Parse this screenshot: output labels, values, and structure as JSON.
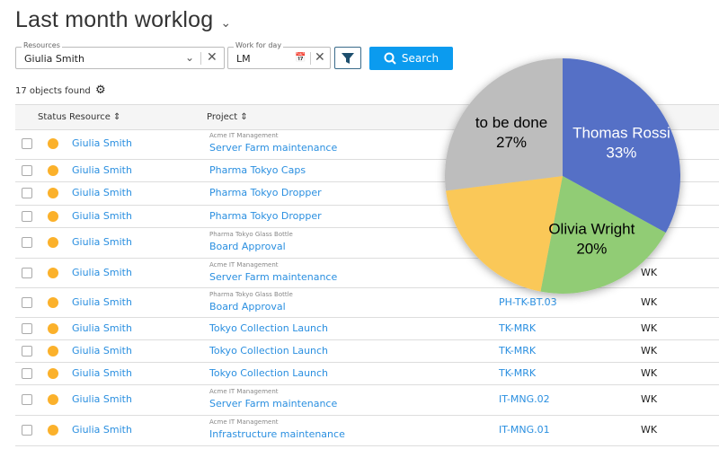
{
  "title": "Last month worklog",
  "filters": {
    "resources_label": "Resources",
    "resources_value": "Giulia Smith",
    "day_label": "Work for day",
    "day_value": "LM",
    "search_label": "Search"
  },
  "count_text": "17 objects found",
  "columns": {
    "status": "Status",
    "resource": "Resource",
    "project": "Project"
  },
  "rows": [
    {
      "resource": "Giulia Smith",
      "sub": "Acme IT Management",
      "project": "Server Farm maintenance",
      "code": "",
      "type": ""
    },
    {
      "resource": "Giulia Smith",
      "sub": "",
      "project": "Pharma Tokyo Caps",
      "code": "",
      "type": ""
    },
    {
      "resource": "Giulia Smith",
      "sub": "",
      "project": "Pharma Tokyo Dropper",
      "code": "",
      "type": ""
    },
    {
      "resource": "Giulia Smith",
      "sub": "",
      "project": "Pharma Tokyo Dropper",
      "code": "",
      "type": ""
    },
    {
      "resource": "Giulia Smith",
      "sub": "Pharma Tokyo Glass Bottle",
      "project": "Board Approval",
      "code": "",
      "type": ""
    },
    {
      "resource": "Giulia Smith",
      "sub": "Acme IT Management",
      "project": "Server Farm maintenance",
      "code": "",
      "type": "WK"
    },
    {
      "resource": "Giulia Smith",
      "sub": "Pharma Tokyo Glass Bottle",
      "project": "Board Approval",
      "code": "PH-TK-BT.03",
      "type": "WK"
    },
    {
      "resource": "Giulia Smith",
      "sub": "",
      "project": "Tokyo Collection Launch",
      "code": "TK-MRK",
      "type": "WK"
    },
    {
      "resource": "Giulia Smith",
      "sub": "",
      "project": "Tokyo Collection Launch",
      "code": "TK-MRK",
      "type": "WK"
    },
    {
      "resource": "Giulia Smith",
      "sub": "",
      "project": "Tokyo Collection Launch",
      "code": "TK-MRK",
      "type": "WK"
    },
    {
      "resource": "Giulia Smith",
      "sub": "Acme IT Management",
      "project": "Server Farm maintenance",
      "code": "IT-MNG.02",
      "type": "WK"
    },
    {
      "resource": "Giulia Smith",
      "sub": "Acme IT Management",
      "project": "Infrastructure maintenance",
      "code": "IT-MNG.01",
      "type": "WK"
    }
  ],
  "status_color": "#fbb12b",
  "chart_data": {
    "type": "pie",
    "slices": [
      {
        "label": "Thomas Rossi",
        "value": 33,
        "text": "33%",
        "color": "#5470c6",
        "label_color": "#ffffff"
      },
      {
        "label": "Olivia Wright",
        "value": 20,
        "text": "20%",
        "color": "#91cc75",
        "label_color": "#000000"
      },
      {
        "label": "",
        "value": 20,
        "text": "",
        "color": "#fac858",
        "label_color": "#000000"
      },
      {
        "label": "to be done",
        "value": 27,
        "text": "27%",
        "color": "#bdbdbd",
        "label_color": "#000000"
      }
    ]
  }
}
